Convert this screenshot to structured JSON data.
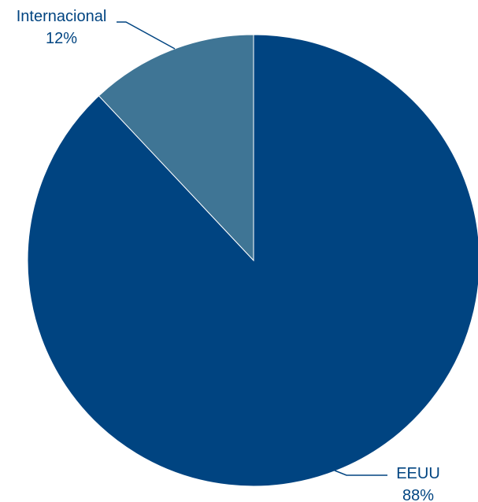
{
  "chart_data": {
    "type": "pie",
    "title": "",
    "start_angle_deg": 0,
    "direction": "clockwise",
    "legend": "none",
    "slices": [
      {
        "label": "EEUU",
        "value": 88,
        "value_label": "88%",
        "color": "#004481"
      },
      {
        "label": "Internacional",
        "value": 12,
        "value_label": "12%",
        "color": "#3f7595"
      }
    ],
    "label_color": "#004481"
  }
}
